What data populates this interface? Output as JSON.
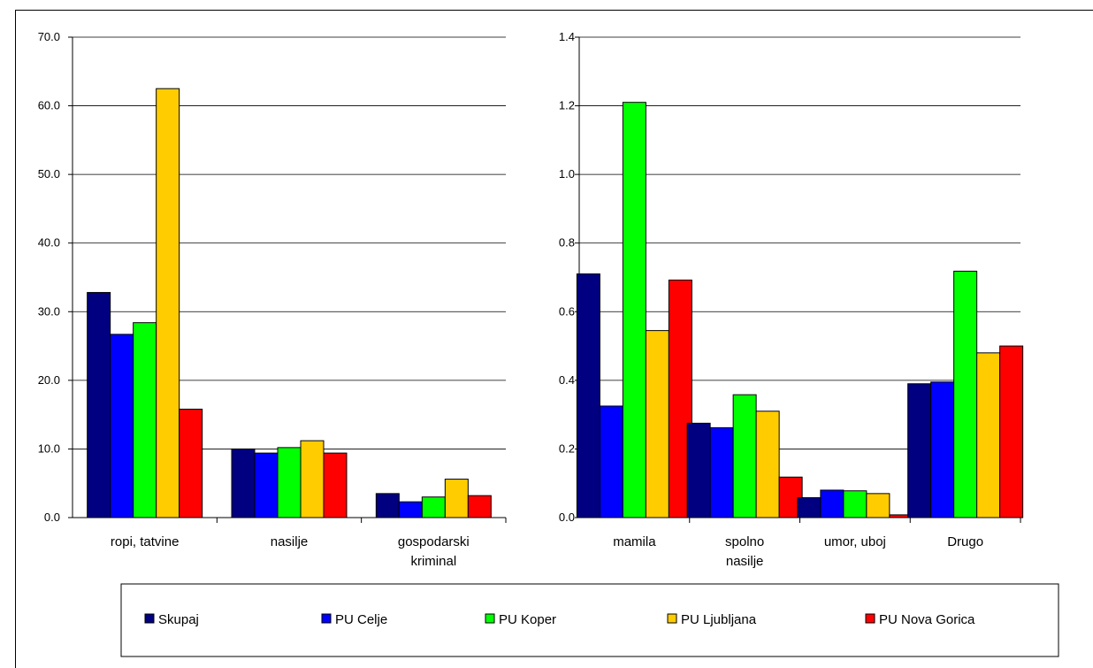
{
  "chart_data": [
    {
      "type": "bar",
      "categories": [
        [
          "ropi, tatvine"
        ],
        [
          "nasilje"
        ],
        [
          "gospodarski",
          "kriminal"
        ]
      ],
      "ylim": [
        0,
        70
      ],
      "yticks": [
        "0.0",
        "10.0",
        "20.0",
        "30.0",
        "40.0",
        "50.0",
        "60.0",
        "70.0"
      ],
      "grid": true,
      "series": [
        {
          "name": "Skupaj",
          "values": [
            32.8,
            10.0,
            3.5
          ]
        },
        {
          "name": "PU Celje",
          "values": [
            26.7,
            9.4,
            2.3
          ]
        },
        {
          "name": "PU Koper",
          "values": [
            28.4,
            10.2,
            3.0
          ]
        },
        {
          "name": "PU Ljubljana",
          "values": [
            62.5,
            11.2,
            5.6
          ]
        },
        {
          "name": "PU Nova Gorica",
          "values": [
            15.8,
            9.4,
            3.2
          ]
        }
      ]
    },
    {
      "type": "bar",
      "categories": [
        [
          "mamila"
        ],
        [
          "spolno",
          "nasilje"
        ],
        [
          "umor, uboj"
        ],
        [
          "Drugo"
        ]
      ],
      "ylim": [
        0,
        1.4
      ],
      "yticks": [
        "0.0",
        "0.2",
        "0.4",
        "0.6",
        "0.8",
        "1.0",
        "1.2",
        "1.4"
      ],
      "grid": true,
      "series": [
        {
          "name": "Skupaj",
          "values": [
            0.71,
            0.275,
            0.058,
            0.39
          ]
        },
        {
          "name": "PU Celje",
          "values": [
            0.325,
            0.262,
            0.08,
            0.395
          ]
        },
        {
          "name": "PU Koper",
          "values": [
            1.21,
            0.358,
            0.078,
            0.718
          ]
        },
        {
          "name": "PU Ljubljana",
          "values": [
            0.545,
            0.31,
            0.07,
            0.48
          ]
        },
        {
          "name": "PU Nova Gorica",
          "values": [
            0.692,
            0.118,
            0.008,
            0.5
          ]
        }
      ]
    }
  ],
  "legend": {
    "placement": "bottom",
    "items": [
      {
        "label": "Skupaj",
        "color": "#000080"
      },
      {
        "label": "PU Celje",
        "color": "#0000FF"
      },
      {
        "label": "PU Koper",
        "color": "#00FF00"
      },
      {
        "label": "PU Ljubljana",
        "color": "#FFCC00"
      },
      {
        "label": "PU Nova Gorica",
        "color": "#FF0000"
      }
    ]
  }
}
